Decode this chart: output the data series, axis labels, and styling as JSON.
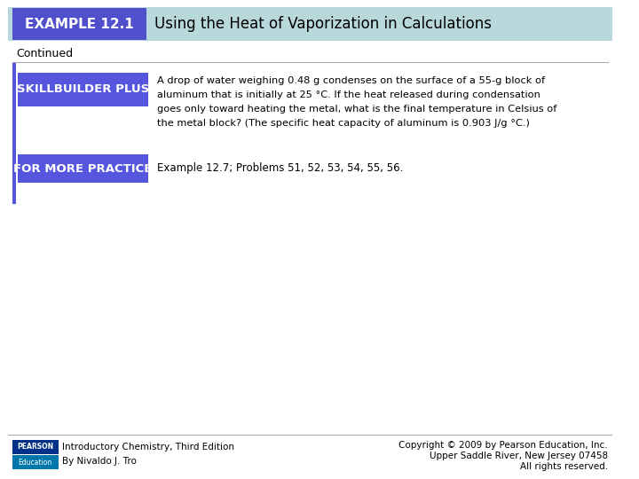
{
  "title_label": "EXAMPLE 12.1",
  "title_text": "Using the Heat of Vaporization in Calculations",
  "continued_text": "Continued",
  "skillbuilder_label": "SKILLBUILDER PLUS",
  "skillbuilder_lines": [
    "A drop of water weighing 0.48 g condenses on the surface of a 55-g block of",
    "aluminum that is initially at 25 °C. If the heat released during condensation",
    "goes only toward heating the metal, what is the final temperature in Celsius of",
    "the metal block? (The specific heat capacity of aluminum is 0.903 J/g °C.)"
  ],
  "practice_label": "FOR MORE PRACTICE",
  "practice_text": "Example 12.7; Problems 51, 52, 53, 54, 55, 56.",
  "footer_left_line1": "Introductory Chemistry, Third Edition",
  "footer_left_line2": "By Nivaldo J. Tro",
  "footer_right_line1": "Copyright © 2009 by Pearson Education, Inc.",
  "footer_right_line2": "Upper Saddle River, New Jersey 07458",
  "footer_right_line3": "All rights reserved.",
  "color_white": "#FFFFFF",
  "color_black": "#000000",
  "color_label_bg": "#5555DD",
  "color_label_text": "#FFFFFF",
  "color_title_bg": "#B8D8DC",
  "color_title_text": "#000000",
  "color_header_label_bg": "#5050CC",
  "color_vbar": "#5555DD",
  "pearson_top_color": "#003087",
  "pearson_bot_color": "#0077AA",
  "background_color": "#FFFFFF",
  "footer_line_color": "#AAAAAA"
}
